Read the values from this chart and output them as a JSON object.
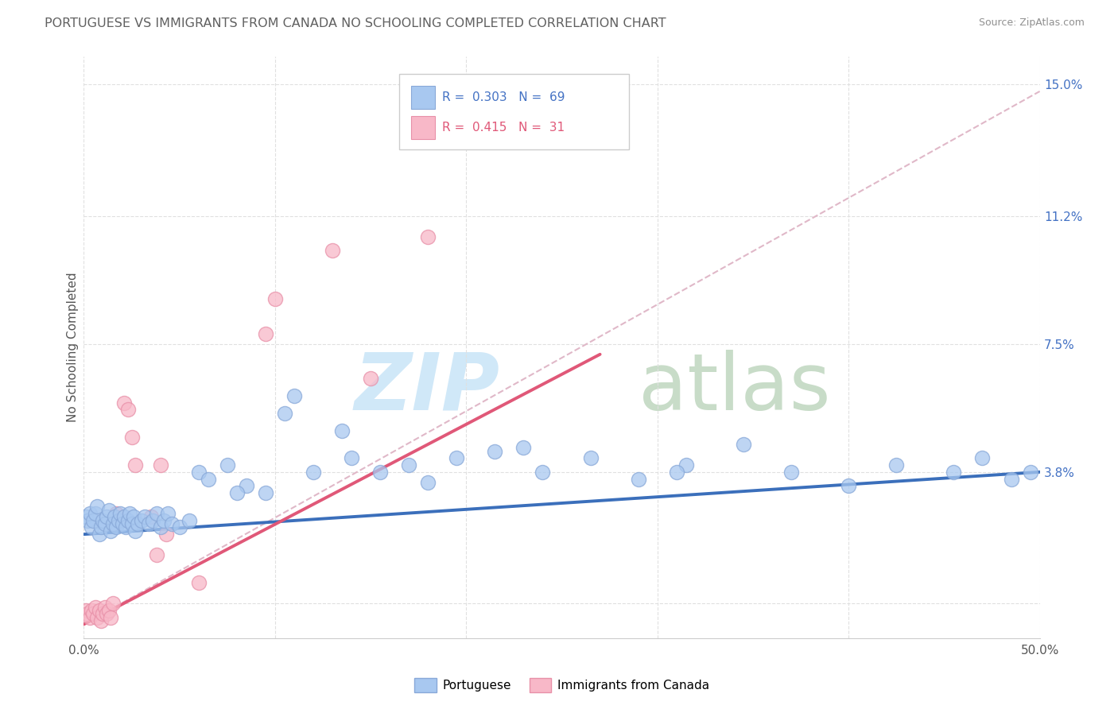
{
  "title": "PORTUGUESE VS IMMIGRANTS FROM CANADA NO SCHOOLING COMPLETED CORRELATION CHART",
  "source": "Source: ZipAtlas.com",
  "ylabel": "No Schooling Completed",
  "xlim": [
    0.0,
    0.5
  ],
  "ylim": [
    -0.01,
    0.158
  ],
  "right_ytick_vals": [
    0.0,
    0.038,
    0.075,
    0.112,
    0.15
  ],
  "right_ytick_labels": [
    "",
    "3.8%",
    "7.5%",
    "11.2%",
    "15.0%"
  ],
  "blue_color": "#A8C8F0",
  "blue_edge_color": "#88A8D8",
  "pink_color": "#F8B8C8",
  "pink_edge_color": "#E890A8",
  "blue_line_color": "#3B6FBB",
  "pink_line_color": "#E05878",
  "dashed_line_color": "#E0B8C8",
  "background_color": "#FFFFFF",
  "grid_color": "#E0E0E0",
  "title_color": "#606060",
  "source_color": "#909090",
  "blue_r": "0.303",
  "blue_n": "69",
  "pink_r": "0.415",
  "pink_n": "31",
  "legend_box_color": "#FFFFFF",
  "legend_border_color": "#CCCCCC",
  "blue_label_color": "#4472C4",
  "pink_label_color": "#E05878",
  "right_tick_color": "#4472C4",
  "blue_x": [
    0.001,
    0.002,
    0.003,
    0.004,
    0.005,
    0.006,
    0.007,
    0.008,
    0.009,
    0.01,
    0.011,
    0.012,
    0.013,
    0.014,
    0.015,
    0.016,
    0.017,
    0.018,
    0.019,
    0.02,
    0.021,
    0.022,
    0.023,
    0.024,
    0.025,
    0.026,
    0.027,
    0.028,
    0.03,
    0.032,
    0.034,
    0.036,
    0.038,
    0.04,
    0.042,
    0.044,
    0.046,
    0.05,
    0.055,
    0.06,
    0.065,
    0.075,
    0.085,
    0.095,
    0.11,
    0.12,
    0.135,
    0.155,
    0.17,
    0.195,
    0.215,
    0.24,
    0.265,
    0.29,
    0.315,
    0.345,
    0.37,
    0.4,
    0.425,
    0.455,
    0.47,
    0.485,
    0.495,
    0.105,
    0.14,
    0.23,
    0.31,
    0.08,
    0.18
  ],
  "blue_y": [
    0.025,
    0.024,
    0.026,
    0.022,
    0.024,
    0.026,
    0.028,
    0.02,
    0.022,
    0.024,
    0.023,
    0.025,
    0.027,
    0.021,
    0.023,
    0.025,
    0.022,
    0.024,
    0.026,
    0.023,
    0.025,
    0.022,
    0.024,
    0.026,
    0.023,
    0.025,
    0.021,
    0.023,
    0.024,
    0.025,
    0.023,
    0.024,
    0.026,
    0.022,
    0.024,
    0.026,
    0.023,
    0.022,
    0.024,
    0.038,
    0.036,
    0.04,
    0.034,
    0.032,
    0.06,
    0.038,
    0.05,
    0.038,
    0.04,
    0.042,
    0.044,
    0.038,
    0.042,
    0.036,
    0.04,
    0.046,
    0.038,
    0.034,
    0.04,
    0.038,
    0.042,
    0.036,
    0.038,
    0.055,
    0.042,
    0.045,
    0.038,
    0.032,
    0.035
  ],
  "pink_x": [
    0.001,
    0.002,
    0.003,
    0.004,
    0.005,
    0.006,
    0.007,
    0.008,
    0.009,
    0.01,
    0.011,
    0.012,
    0.013,
    0.014,
    0.015,
    0.017,
    0.019,
    0.021,
    0.023,
    0.025,
    0.027,
    0.035,
    0.038,
    0.04,
    0.043,
    0.06,
    0.095,
    0.1,
    0.13,
    0.15,
    0.18
  ],
  "pink_y": [
    -0.002,
    -0.003,
    -0.004,
    -0.002,
    -0.003,
    -0.001,
    -0.004,
    -0.002,
    -0.005,
    -0.003,
    -0.001,
    -0.003,
    -0.002,
    -0.004,
    0.0,
    0.026,
    0.024,
    0.058,
    0.056,
    0.048,
    0.04,
    0.025,
    0.014,
    0.04,
    0.02,
    0.006,
    0.078,
    0.088,
    0.102,
    0.065,
    0.106
  ],
  "blue_trend_x": [
    0.0,
    0.5
  ],
  "blue_trend_y": [
    0.02,
    0.038
  ],
  "pink_trend_x": [
    0.0,
    0.27
  ],
  "pink_trend_y": [
    -0.006,
    0.072
  ],
  "dashed_trend_x": [
    0.0,
    0.5
  ],
  "dashed_trend_y": [
    -0.006,
    0.148
  ]
}
